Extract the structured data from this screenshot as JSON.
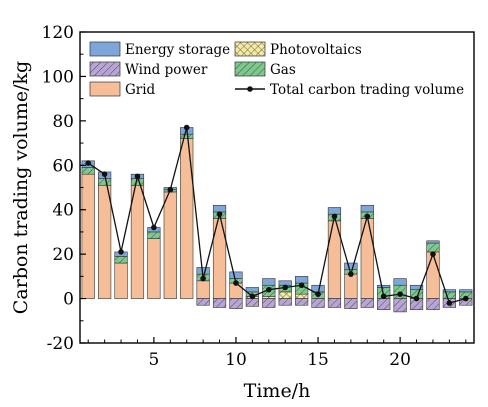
{
  "chart_data": {
    "type": "bar",
    "xlabel": "Time/h",
    "ylabel": "Carbon trading volume/kg",
    "ylim": [
      -20,
      120
    ],
    "yticks": [
      -20,
      0,
      20,
      40,
      60,
      80,
      100,
      120
    ],
    "xlim": [
      0.5,
      24.5
    ],
    "xticks": [
      5,
      10,
      15,
      20
    ],
    "legend_position": "top",
    "x": [
      1,
      2,
      3,
      4,
      5,
      6,
      7,
      8,
      9,
      10,
      11,
      12,
      13,
      14,
      15,
      16,
      17,
      18,
      19,
      20,
      21,
      22,
      23,
      24
    ],
    "series": [
      {
        "name": "Energy storage",
        "color": "#7fa6d8",
        "hatch": "none",
        "values": [
          3,
          3,
          2,
          2,
          2,
          1,
          3,
          3,
          3,
          3,
          2,
          3,
          2,
          3,
          3,
          3,
          3,
          3,
          1,
          3,
          2,
          1,
          1,
          1
        ]
      },
      {
        "name": "Wind power",
        "color": "#b8a5d6",
        "hatch": "diag",
        "values": [
          0,
          0,
          0,
          0,
          0,
          0,
          0,
          -3,
          -4,
          -4.5,
          -3.5,
          -4,
          -3,
          -3,
          -4,
          -4,
          -4.5,
          -4,
          -5,
          -6,
          -5,
          -5,
          -4,
          -3
        ]
      },
      {
        "name": "Grid",
        "color": "#f5bd98",
        "hatch": "none",
        "values": [
          56,
          51,
          16,
          51,
          27,
          48,
          72,
          8,
          36,
          7,
          0,
          0,
          0,
          0,
          0,
          35,
          11,
          36,
          0,
          0,
          0,
          21,
          0,
          0
        ]
      },
      {
        "name": "Photovoltaics",
        "color": "#f3eaa2",
        "hatch": "cross",
        "values": [
          0,
          0,
          0,
          0,
          0,
          0,
          0,
          0,
          0,
          0,
          1,
          1,
          3,
          2,
          0,
          0,
          0,
          0,
          0,
          0,
          0,
          0,
          0,
          0
        ]
      },
      {
        "name": "Gas",
        "color": "#7dc98d",
        "hatch": "diag",
        "values": [
          3,
          3,
          3,
          3,
          3,
          1,
          2,
          3,
          3,
          2,
          2,
          5,
          3,
          5,
          3,
          3,
          2,
          3,
          5,
          6,
          4,
          4,
          3,
          3
        ]
      },
      {
        "name": "Total carbon trading volume",
        "color": "#111111",
        "kind": "line-marker",
        "values": [
          61,
          56,
          21,
          55,
          32,
          49,
          77,
          9,
          38,
          7,
          1,
          4,
          5,
          6,
          2,
          37,
          11,
          37,
          1,
          2,
          0,
          20,
          -2,
          0
        ]
      }
    ]
  }
}
